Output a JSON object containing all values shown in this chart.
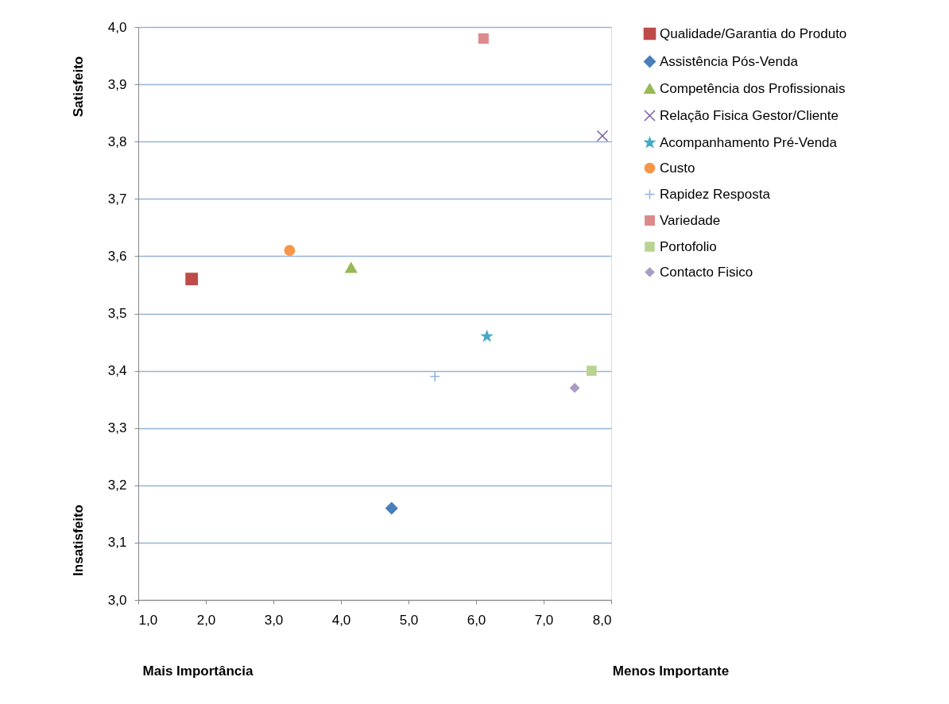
{
  "chart_data": {
    "type": "scatter",
    "xlim": [
      1.0,
      8.0
    ],
    "xticks": [
      {
        "value": 1,
        "label": "1,0"
      },
      {
        "value": 2,
        "label": "2,0"
      },
      {
        "value": 3,
        "label": "3,0"
      },
      {
        "value": 4,
        "label": "4,0"
      },
      {
        "value": 5,
        "label": "5,0"
      },
      {
        "value": 6,
        "label": "6,0"
      },
      {
        "value": 7,
        "label": "7,0"
      },
      {
        "value": 8,
        "label": "8,0"
      }
    ],
    "ylim": [
      3.0,
      4.0
    ],
    "yticks": [
      {
        "value": 3.0,
        "label": "3,0"
      },
      {
        "value": 3.1,
        "label": "3,1"
      },
      {
        "value": 3.2,
        "label": "3,2"
      },
      {
        "value": 3.3,
        "label": "3,3"
      },
      {
        "value": 3.4,
        "label": "3,4"
      },
      {
        "value": 3.5,
        "label": "3,5"
      },
      {
        "value": 3.6,
        "label": "3,6"
      },
      {
        "value": 3.7,
        "label": "3,7"
      },
      {
        "value": 3.8,
        "label": "3,8"
      },
      {
        "value": 3.9,
        "label": "3,9"
      },
      {
        "value": 4.0,
        "label": "4,0"
      }
    ],
    "grid": "y",
    "legend": "right",
    "annotations": [
      "Satisfeito",
      "Insatisfeito",
      "Mais Importância",
      "Menos Importante"
    ],
    "series": [
      {
        "name": "Qualidade/Garantia do Produto",
        "color": "#be4b48",
        "marker": "square",
        "x": [
          1.79
        ],
        "values": [
          3.56
        ]
      },
      {
        "name": "Assistência Pós-Venda",
        "color": "#4a7ebb",
        "marker": "diamond",
        "x": [
          4.75
        ],
        "values": [
          3.16
        ]
      },
      {
        "name": "Competência dos Profissionais",
        "color": "#98b954",
        "marker": "triangle",
        "x": [
          4.15
        ],
        "values": [
          3.58
        ]
      },
      {
        "name": "Relação Fisica Gestor/Cliente",
        "color": "#7d60a0",
        "marker": "cross",
        "x": [
          7.87
        ],
        "values": [
          3.81
        ]
      },
      {
        "name": "Acompanhamento Pré-Venda",
        "color": "#46aac5",
        "marker": "star",
        "x": [
          6.16
        ],
        "values": [
          3.46
        ]
      },
      {
        "name": "Custo",
        "color": "#f79646",
        "marker": "circle",
        "x": [
          3.24
        ],
        "values": [
          3.61
        ]
      },
      {
        "name": "Rapidez Resposta",
        "color": "#8eb4e3",
        "marker": "plus",
        "x": [
          5.39
        ],
        "values": [
          3.39
        ]
      },
      {
        "name": "Variedade",
        "color": "#dd8a8a",
        "marker": "square",
        "x": [
          6.11
        ],
        "values": [
          3.98
        ]
      },
      {
        "name": "Portofolio",
        "color": "#b8d38f",
        "marker": "square",
        "x": [
          7.71
        ],
        "values": [
          3.4
        ]
      },
      {
        "name": "Contacto Fisico",
        "color": "#a99bc3",
        "marker": "diamond",
        "x": [
          7.46
        ],
        "values": [
          3.37
        ]
      }
    ]
  }
}
